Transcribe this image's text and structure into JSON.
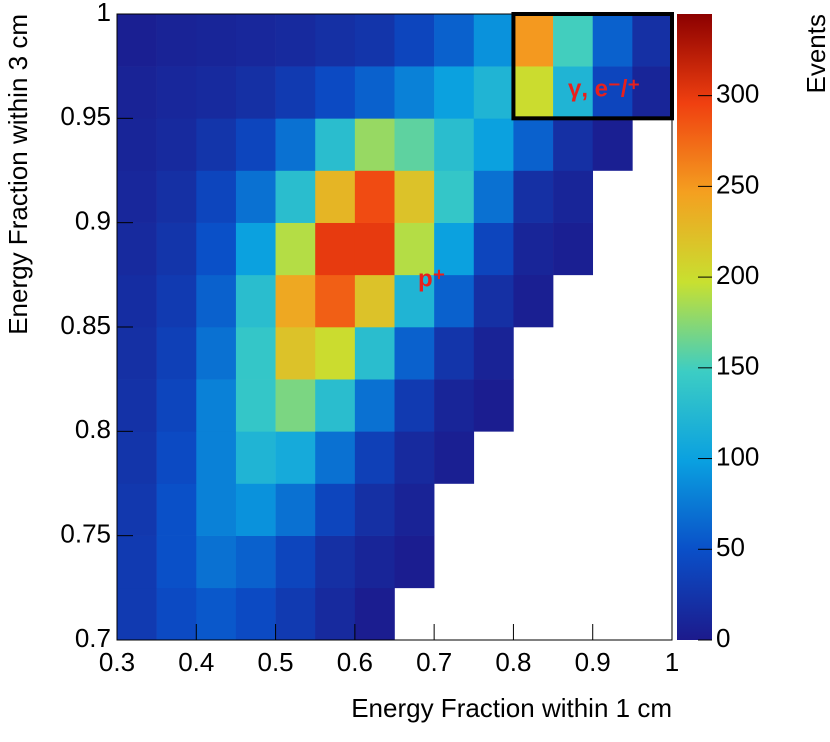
{
  "chart_data": {
    "type": "heatmap",
    "x_label": "Energy Fraction within 1 cm",
    "y_label": "Energy Fraction within 3 cm",
    "colorbar_label": "Events",
    "xlim": [
      0.3,
      1
    ],
    "ylim": [
      0.7,
      1
    ],
    "xticks": [
      0.3,
      0.4,
      0.5,
      0.6,
      0.7,
      0.8,
      0.9,
      1
    ],
    "yticks": [
      0.7,
      0.75,
      0.8,
      0.85,
      0.9,
      0.95,
      1
    ],
    "zlim": [
      0,
      345
    ],
    "zticks": [
      0,
      50,
      100,
      150,
      200,
      250,
      300
    ],
    "colormap": [
      "#1c1a8c",
      "#0a4fc8",
      "#0aa0e0",
      "#3ccdc4",
      "#c8e030",
      "#f4a020",
      "#f04010",
      "#8c0000"
    ],
    "xbins": [
      0.3,
      0.35,
      0.4,
      0.45,
      0.5,
      0.55,
      0.6,
      0.65,
      0.7,
      0.75,
      0.8,
      0.85,
      0.9,
      0.95,
      1
    ],
    "ybins": [
      0.7,
      0.725,
      0.75,
      0.775,
      0.8,
      0.825,
      0.85,
      0.875,
      0.9,
      0.925,
      0.95,
      0.975,
      1
    ],
    "z": [
      [
        30,
        45,
        55,
        45,
        30,
        15,
        3,
        null,
        null,
        null,
        null,
        null,
        null,
        null
      ],
      [
        30,
        50,
        70,
        60,
        40,
        20,
        10,
        3,
        null,
        null,
        null,
        null,
        null,
        null
      ],
      [
        28,
        50,
        80,
        90,
        70,
        40,
        20,
        8,
        null,
        null,
        null,
        null,
        null,
        null
      ],
      [
        25,
        45,
        80,
        120,
        110,
        70,
        35,
        15,
        5,
        null,
        null,
        null,
        null,
        null
      ],
      [
        22,
        40,
        80,
        140,
        170,
        130,
        70,
        30,
        10,
        3,
        null,
        null,
        null,
        null
      ],
      [
        20,
        35,
        70,
        140,
        220,
        200,
        130,
        60,
        25,
        8,
        null,
        null,
        null,
        null
      ],
      [
        18,
        30,
        60,
        130,
        240,
        280,
        220,
        120,
        60,
        20,
        5,
        null,
        null,
        null
      ],
      [
        15,
        25,
        50,
        100,
        190,
        300,
        300,
        190,
        100,
        40,
        10,
        5,
        null,
        null
      ],
      [
        12,
        20,
        40,
        70,
        130,
        230,
        290,
        220,
        140,
        70,
        20,
        10,
        null,
        null
      ],
      [
        10,
        15,
        25,
        40,
        70,
        130,
        180,
        160,
        130,
        100,
        60,
        20,
        5,
        null
      ],
      [
        8,
        12,
        15,
        20,
        30,
        45,
        60,
        80,
        100,
        120,
        200,
        120,
        40,
        10
      ],
      [
        5,
        8,
        10,
        12,
        15,
        20,
        25,
        40,
        60,
        90,
        250,
        150,
        60,
        20
      ]
    ],
    "box": {
      "x": [
        0.8,
        1
      ],
      "y": [
        0.95,
        1
      ]
    },
    "annotations": [
      "p⁺",
      "γ, e⁻/⁺"
    ]
  }
}
